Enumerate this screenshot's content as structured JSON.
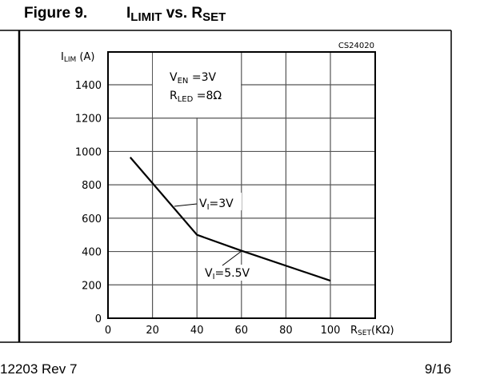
{
  "header": {
    "figure_number": "Figure 9.",
    "title_main": "I",
    "title_sub1": "LIMIT",
    "title_mid": " vs. R",
    "title_sub2": "SET"
  },
  "figure_code": "CS24020",
  "footer": {
    "left": "12203 Rev 7",
    "right": "9/16"
  },
  "chart_data": {
    "type": "line",
    "title": "ILIMIT vs. RSET",
    "xlabel": "RSET(KΩ)",
    "ylabel": "ILIM (A)",
    "xlim": [
      0,
      120
    ],
    "ylim": [
      0,
      1600
    ],
    "x_ticks": [
      0,
      20,
      40,
      60,
      80,
      100
    ],
    "y_ticks": [
      0,
      200,
      400,
      600,
      800,
      1000,
      1200,
      1400
    ],
    "grid": true,
    "conditions": [
      "VEN =3V",
      "RLED =8Ω"
    ],
    "series": [
      {
        "name": "VI=3V / VI=5.5V",
        "x": [
          10,
          40,
          60,
          100
        ],
        "y": [
          965,
          500,
          405,
          225
        ]
      }
    ],
    "annotations": [
      {
        "text": "VI=3V",
        "x": 40,
        "y": 690
      },
      {
        "text": "VI=5.5V",
        "x": 50,
        "y": 270
      }
    ]
  },
  "colors": {
    "line": "#000000",
    "grid": "#555555",
    "background": "#ffffff"
  }
}
